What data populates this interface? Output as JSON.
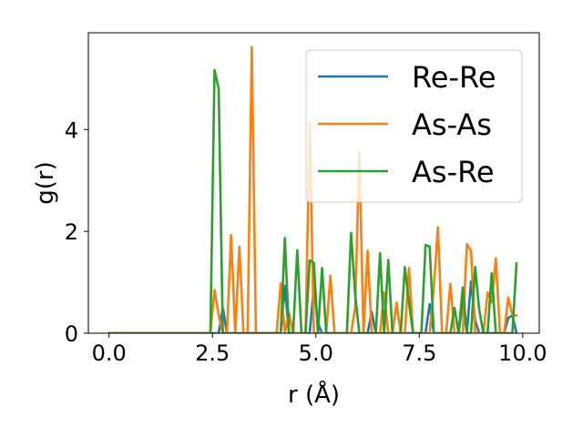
{
  "chart_data": {
    "type": "line",
    "xlabel": "r (Å)",
    "ylabel": "g(r)",
    "xlim": [
      -0.5,
      10.4
    ],
    "ylim": [
      0,
      5.9
    ],
    "xticks": [
      0.0,
      2.5,
      5.0,
      7.5,
      10.0
    ],
    "xtick_labels": [
      "0.0",
      "2.5",
      "5.0",
      "7.5",
      "10.0"
    ],
    "yticks": [
      0,
      2,
      4
    ],
    "ytick_labels": [
      "0",
      "2",
      "4"
    ],
    "grid": false,
    "legend_position": "upper right",
    "series": [
      {
        "name": "Re-Re",
        "color": "#1f77b4",
        "x": [
          0.0,
          2.45,
          2.65,
          2.75,
          2.85,
          2.95,
          4.15,
          4.25,
          4.35,
          4.85,
          4.95,
          5.05,
          5.15,
          6.25,
          6.35,
          6.45,
          7.65,
          7.75,
          7.85,
          8.45,
          8.55,
          8.65,
          8.75,
          8.85,
          8.95,
          9.05,
          9.15,
          9.25,
          9.35,
          9.55,
          9.65,
          9.75,
          9.85
        ],
        "y": [
          0.0,
          0.0,
          0.0,
          0.5,
          0.0,
          0.0,
          0.0,
          0.93,
          0.0,
          0.0,
          0.9,
          0.2,
          0.0,
          0.0,
          0.42,
          0.0,
          0.0,
          0.57,
          0.0,
          0.0,
          0.6,
          0.0,
          1.02,
          0.25,
          0.0,
          0.0,
          0.0,
          0.0,
          0.0,
          0.0,
          0.3,
          0.35,
          0.0
        ]
      },
      {
        "name": "As-As",
        "color": "#ff7f0e",
        "x": [
          0.0,
          2.45,
          2.55,
          2.65,
          2.75,
          2.85,
          2.95,
          3.05,
          3.15,
          3.25,
          3.35,
          3.45,
          3.55,
          3.65,
          3.75,
          3.85,
          3.95,
          4.05,
          4.15,
          4.25,
          4.35,
          4.45,
          4.55,
          4.65,
          4.75,
          4.85,
          4.95,
          5.05,
          5.15,
          5.25,
          5.35,
          5.45,
          5.55,
          5.65,
          5.75,
          5.85,
          5.95,
          6.05,
          6.15,
          6.25,
          6.35,
          6.45,
          6.55,
          6.65,
          6.75,
          6.85,
          6.95,
          7.05,
          7.15,
          7.25,
          7.35,
          7.45,
          7.55,
          7.65,
          7.75,
          7.85,
          7.95,
          8.05,
          8.15,
          8.25,
          8.35,
          8.45,
          8.55,
          8.65,
          8.75,
          8.85,
          8.95,
          9.05,
          9.15,
          9.25,
          9.35,
          9.45,
          9.55,
          9.65,
          9.75,
          9.85
        ],
        "y": [
          0.0,
          0.0,
          0.85,
          0.35,
          0.0,
          0.0,
          1.93,
          0.0,
          1.7,
          0.0,
          0.0,
          5.62,
          0.0,
          0.0,
          0.0,
          0.0,
          0.0,
          0.0,
          0.98,
          0.0,
          0.4,
          0.0,
          0.0,
          0.0,
          0.0,
          4.12,
          0.0,
          0.0,
          0.0,
          0.0,
          1.13,
          0.0,
          0.0,
          0.0,
          0.0,
          0.0,
          0.5,
          3.56,
          0.0,
          1.62,
          0.0,
          0.0,
          0.0,
          0.8,
          0.0,
          0.0,
          0.6,
          0.0,
          0.0,
          1.28,
          0.0,
          0.0,
          0.0,
          0.0,
          0.0,
          0.9,
          2.08,
          0.0,
          0.0,
          0.97,
          0.0,
          0.0,
          0.0,
          1.75,
          1.62,
          0.0,
          0.0,
          0.0,
          0.8,
          0.6,
          1.47,
          0.0,
          0.0,
          0.7,
          0.35,
          0.35
        ]
      },
      {
        "name": "As-Re",
        "color": "#2ca02c",
        "x": [
          0.0,
          2.45,
          2.55,
          2.65,
          2.75,
          2.85,
          4.05,
          4.15,
          4.25,
          4.35,
          4.45,
          4.55,
          4.65,
          4.75,
          4.85,
          4.95,
          5.05,
          5.15,
          5.25,
          5.35,
          5.65,
          5.75,
          5.85,
          5.95,
          6.05,
          6.15,
          6.25,
          6.35,
          6.45,
          6.55,
          6.65,
          6.75,
          6.85,
          6.95,
          7.05,
          7.15,
          7.25,
          7.35,
          7.45,
          7.55,
          7.65,
          7.75,
          7.85,
          7.95,
          8.05,
          8.15,
          8.25,
          8.35,
          8.45,
          8.55,
          8.65,
          8.75,
          8.85,
          8.95,
          9.05,
          9.15,
          9.25,
          9.35,
          9.45,
          9.55,
          9.65,
          9.75,
          9.85
        ],
        "y": [
          0.0,
          0.0,
          5.17,
          4.8,
          0.0,
          0.0,
          0.0,
          0.0,
          1.87,
          0.0,
          0.0,
          1.63,
          0.0,
          0.0,
          1.43,
          1.38,
          0.0,
          1.28,
          0.0,
          0.0,
          0.0,
          0.0,
          1.97,
          0.75,
          0.0,
          0.0,
          0.0,
          0.0,
          0.0,
          1.57,
          0.0,
          1.44,
          0.0,
          0.0,
          0.0,
          1.3,
          0.6,
          0.0,
          0.0,
          0.0,
          1.73,
          1.7,
          0.0,
          0.0,
          0.0,
          0.0,
          0.0,
          0.5,
          0.0,
          0.9,
          0.0,
          0.0,
          1.3,
          0.45,
          0.0,
          0.0,
          1.18,
          0.0,
          0.0,
          0.0,
          0.0,
          0.0,
          1.37
        ]
      }
    ]
  }
}
